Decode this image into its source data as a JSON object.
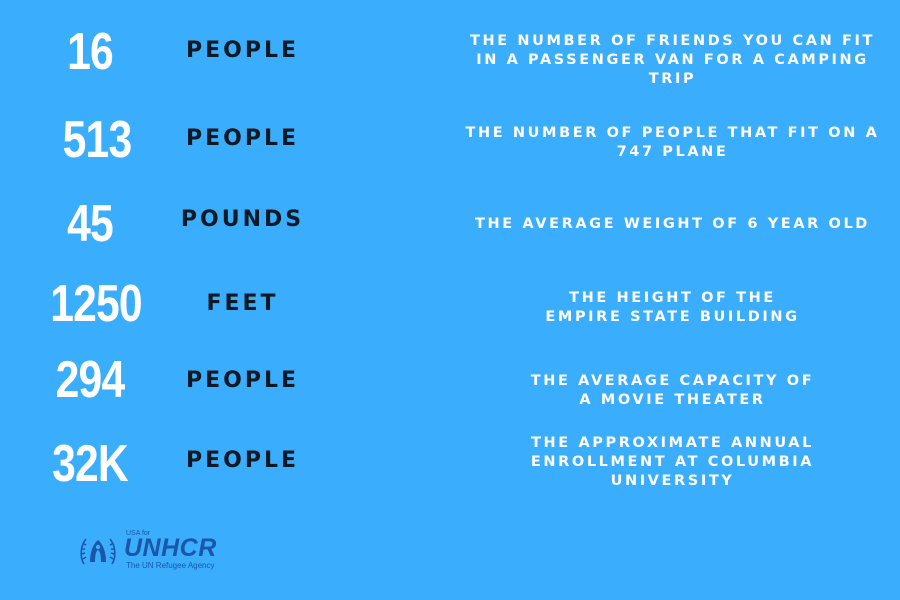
{
  "facts": [
    {
      "number": "16",
      "unit": "PEOPLE",
      "description": [
        "THE NUMBER OF FRIENDS YOU CAN FIT",
        "IN A PASSENGER VAN FOR A CAMPING",
        "TRIP"
      ]
    },
    {
      "number": "513",
      "unit": "PEOPLE",
      "description": [
        "THE NUMBER OF PEOPLE THAT FIT ON A",
        "747 PLANE"
      ]
    },
    {
      "number": "45",
      "unit": "POUNDS",
      "description": [
        "THE AVERAGE WEIGHT OF 6 YEAR OLD"
      ]
    },
    {
      "number": "1250",
      "unit": "FEET",
      "description": [
        "THE HEIGHT OF THE",
        "EMPIRE STATE BUILDING"
      ]
    },
    {
      "number": "294",
      "unit": "PEOPLE",
      "description": [
        "THE AVERAGE CAPACITY OF",
        "A MOVIE THEATER"
      ]
    },
    {
      "number": "32K",
      "unit": "PEOPLE",
      "description": [
        "THE APPROXIMATE ANNUAL",
        "ENROLLMENT AT COLUMBIA",
        "UNIVERSITY"
      ]
    }
  ],
  "logo": {
    "prefix": "USA for",
    "name": "UNHCR",
    "tagline": "The UN Refugee Agency",
    "icon": "refugee-family-emblem-icon"
  },
  "colors": {
    "background": "#3aaefc",
    "number": "#ffffff",
    "unit": "#0d1a26",
    "logo": "#1b56a8"
  }
}
